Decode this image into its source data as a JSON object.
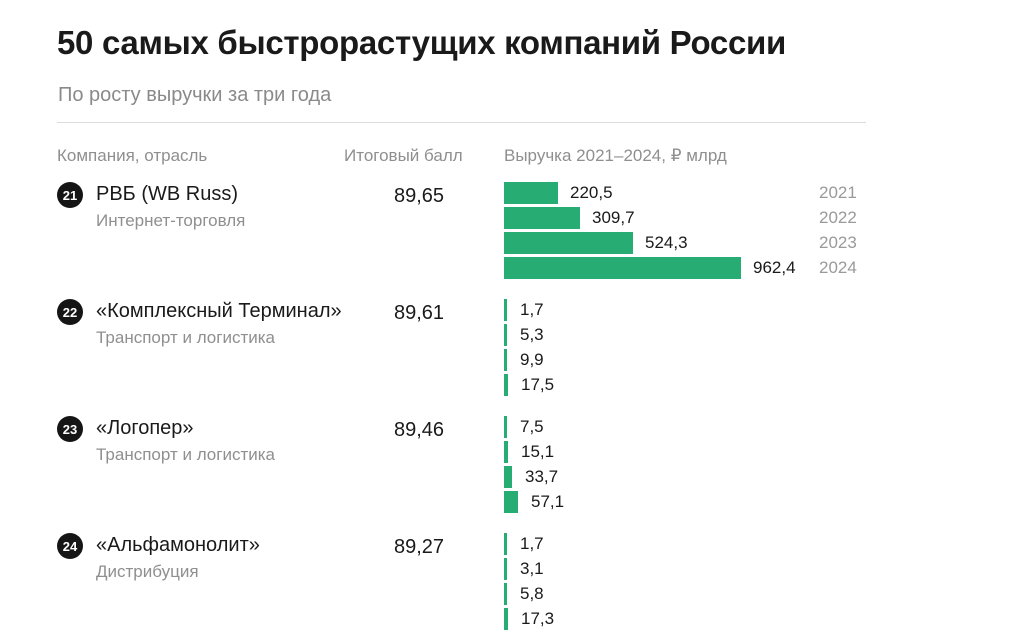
{
  "header": {
    "title": "50 самых быстрорастущих компаний России",
    "subtitle": "По росту выручки за три года"
  },
  "columns": {
    "company": "Компания, отрасль",
    "score": "Итоговый балл",
    "revenue": "Выручка 2021–2024, ₽ млрд"
  },
  "chart_data": {
    "type": "bar",
    "orientation": "horizontal",
    "title": "50 самых быстрорастущих компаний России",
    "subtitle": "По росту выручки за три года",
    "value_label": "Выручка 2021–2024, ₽ млрд",
    "years": [
      "2021",
      "2022",
      "2023",
      "2024"
    ],
    "xlim": [
      0,
      962.4
    ],
    "companies": [
      {
        "rank": "21",
        "name": "РВБ (WB Russ)",
        "industry": "Интернет-торговля",
        "score": "89,65",
        "values": [
          220.5,
          309.7,
          524.3,
          962.4
        ],
        "labels": [
          "220,5",
          "309,7",
          "524,3",
          "962,4"
        ]
      },
      {
        "rank": "22",
        "name": "«Комплексный Терминал»",
        "industry": "Транспорт и логистика",
        "score": "89,61",
        "values": [
          1.7,
          5.3,
          9.9,
          17.5
        ],
        "labels": [
          "1,7",
          "5,3",
          "9,9",
          "17,5"
        ]
      },
      {
        "rank": "23",
        "name": "«Логопер»",
        "industry": "Транспорт и логистика",
        "score": "89,46",
        "values": [
          7.5,
          15.1,
          33.7,
          57.1
        ],
        "labels": [
          "7,5",
          "15,1",
          "33,7",
          "57,1"
        ]
      },
      {
        "rank": "24",
        "name": "«Альфамонолит»",
        "industry": "Дистрибуция",
        "score": "89,27",
        "values": [
          1.7,
          3.1,
          5.8,
          17.3
        ],
        "labels": [
          "1,7",
          "3,1",
          "5,8",
          "17,3"
        ]
      }
    ]
  },
  "colors": {
    "bar": "#27ad74",
    "rank_badge": "#151515"
  }
}
